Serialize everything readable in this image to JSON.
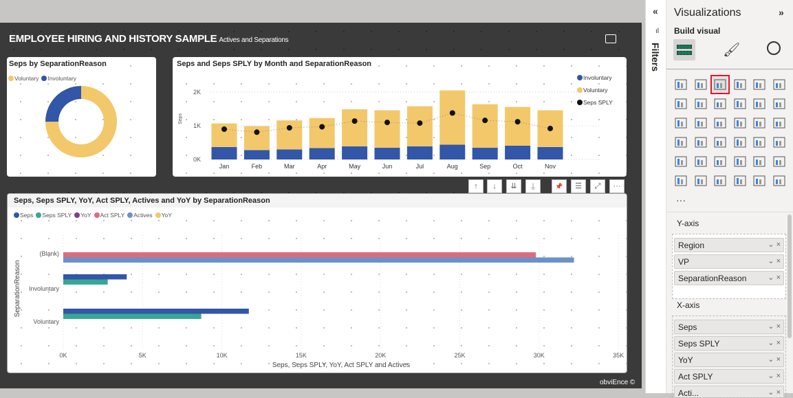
{
  "report": {
    "title": "EMPLOYEE HIRING AND HISTORY SAMPLE",
    "subtitle": "Actives and Separations",
    "footer": "obviEnce ©"
  },
  "donut": {
    "title": "Seps by SeparationReason",
    "chart_data": {
      "type": "pie",
      "title": "Seps by SeparationReason",
      "legend": "top-left",
      "slices": [
        {
          "name": "Voluntary",
          "value": 75,
          "color": "#f2c86a"
        },
        {
          "name": "Involuntary",
          "value": 25,
          "color": "#3256a8"
        }
      ]
    }
  },
  "columns": {
    "title": "Seps and Seps SPLY by Month and SeparationReason",
    "chart_data": {
      "type": "bar",
      "stacked": true,
      "title": "Seps and Seps SPLY by Month and SeparationReason",
      "ylabel": "Seps",
      "ylim": [
        0,
        2000
      ],
      "yticks": [
        "0K",
        "1K",
        "2K"
      ],
      "legend": "right",
      "categories": [
        "Jan",
        "Feb",
        "Mar",
        "Apr",
        "May",
        "Jun",
        "Jul",
        "Aug",
        "Sep",
        "Oct",
        "Nov"
      ],
      "series": [
        {
          "name": "Involuntary",
          "color": "#3256a8",
          "values": [
            370,
            280,
            300,
            340,
            390,
            350,
            390,
            440,
            350,
            410,
            370
          ]
        },
        {
          "name": "Voluntary",
          "color": "#f2c86a",
          "values": [
            700,
            710,
            860,
            890,
            1100,
            1110,
            1190,
            1610,
            1290,
            1150,
            1090
          ]
        },
        {
          "name": "Seps SPLY",
          "color": "#111111",
          "type": "line",
          "values": [
            900,
            810,
            940,
            970,
            1140,
            1100,
            1080,
            1380,
            1160,
            1120,
            920
          ]
        }
      ]
    }
  },
  "hbar": {
    "title": "Seps, Seps SPLY, YoY, Act SPLY, Actives and YoY by SeparationReason",
    "chart_data": {
      "type": "bar",
      "orientation": "horizontal",
      "title": "Seps, Seps SPLY, YoY, Act SPLY, Actives and YoY by SeparationReason",
      "xlabel": "Seps, Seps SPLY, YoY, Act SPLY and Actives",
      "ylabel": "SeparationReason",
      "xlim": [
        0,
        35000
      ],
      "xticks": [
        "0K",
        "5K",
        "10K",
        "15K",
        "20K",
        "25K",
        "30K",
        "35K"
      ],
      "legend": "top-left",
      "categories": [
        "(Blank)",
        "Involuntary",
        "Voluntary"
      ],
      "series": [
        {
          "name": "Seps",
          "color": "#3256a8",
          "values": [
            0,
            4000,
            11700
          ]
        },
        {
          "name": "Seps SPLY",
          "color": "#37a794",
          "values": [
            0,
            2800,
            8700
          ]
        },
        {
          "name": "YoY",
          "color": "#7b3f8c",
          "values": [
            0,
            0,
            0
          ]
        },
        {
          "name": "Act SPLY",
          "color": "#dd6b7f",
          "values": [
            29800,
            0,
            0
          ]
        },
        {
          "name": "Actives",
          "color": "#6b91c9",
          "values": [
            32200,
            0,
            0
          ]
        },
        {
          "name": "YoY",
          "color": "#f2c86a",
          "values": [
            0,
            0,
            0
          ]
        }
      ]
    }
  },
  "toolbar": {
    "up": "↑",
    "down": "↓",
    "expand_all": "⇊",
    "drill": "⍊",
    "pin": "📌",
    "filter": "☰",
    "focus": "⤢",
    "more": "···"
  },
  "filters": {
    "label": "Filters",
    "collapse": "«"
  },
  "viz": {
    "title": "Visualizations",
    "expand": "»",
    "build_visual": "Build visual",
    "icons": [
      "stacked-bar",
      "stacked-column",
      "clustered-bar",
      "clustered-column",
      "100-stacked-bar",
      "100-stacked-column",
      "line",
      "area",
      "stacked-area",
      "line-column",
      "line-clustered-column",
      "ribbon",
      "waterfall",
      "funnel",
      "scatter",
      "pie",
      "donut",
      "treemap",
      "map",
      "filled-map",
      "azure-map",
      "gauge",
      "card",
      "multi-row-card",
      "kpi",
      "slicer",
      "table",
      "matrix",
      "key-influencers",
      "decomposition-tree",
      "qa",
      "smart-narrative",
      "metrics",
      "paginated",
      "power-apps",
      "power-automate",
      "more-visuals"
    ],
    "more": "···",
    "y_axis_label": "Y-axis",
    "y_fields": [
      "Region",
      "VP",
      "SeparationReason"
    ],
    "x_axis_label": "X-axis",
    "x_fields": [
      "Seps",
      "Seps SPLY",
      "YoY",
      "Act SPLY",
      "Acti..."
    ]
  }
}
